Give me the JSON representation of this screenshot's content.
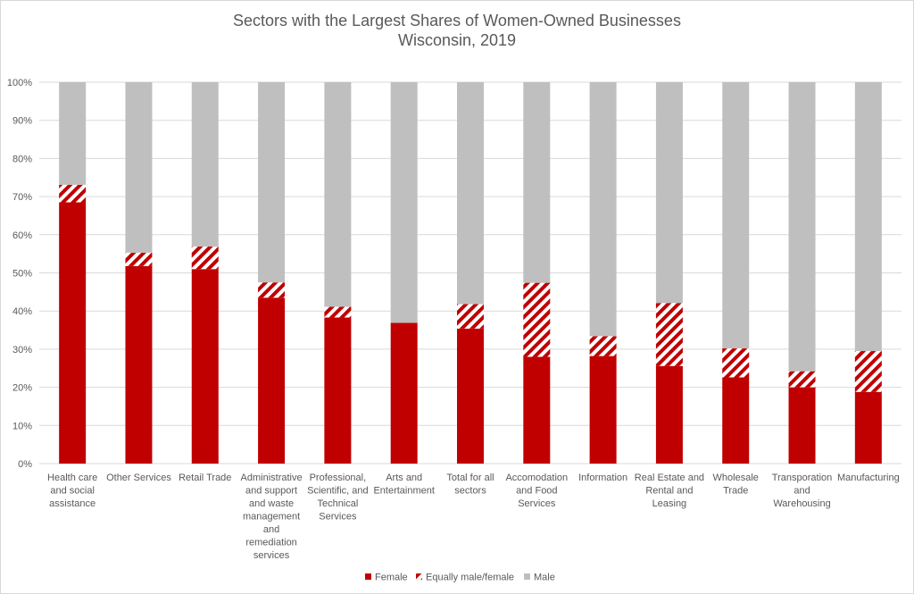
{
  "chart_data": {
    "type": "bar",
    "stacked": "percent",
    "title": "Sectors with the Largest Shares of Women-Owned Businesses",
    "subtitle": "Wisconsin, 2019",
    "xlabel": "",
    "ylabel": "",
    "ylim": [
      0,
      100
    ],
    "y_ticks": [
      "0%",
      "10%",
      "20%",
      "30%",
      "40%",
      "50%",
      "60%",
      "70%",
      "80%",
      "90%",
      "100%"
    ],
    "grid": true,
    "legend_position": "bottom",
    "categories": [
      "Health care and social assistance",
      "Other Services",
      "Retail Trade",
      "Administrative and support and waste management and remediation services",
      "Professional, Scientific, and Technical Services",
      "Arts and Entertainment",
      "Total for all sectors",
      "Accomodation and Food Services",
      "Information",
      "Real Estate and Rental and Leasing",
      "Wholesale Trade",
      "Transporation and Warehousing",
      "Manufacturing"
    ],
    "category_label_lines": [
      [
        "Health care",
        "and social",
        "assistance"
      ],
      [
        "Other Services"
      ],
      [
        "Retail Trade"
      ],
      [
        "Administrative",
        "and support",
        "and waste",
        "management",
        "and",
        "remediation",
        "services"
      ],
      [
        "Professional,",
        "Scientific, and",
        "Technical",
        "Services"
      ],
      [
        "Arts and",
        "Entertainment"
      ],
      [
        "Total for all",
        "sectors"
      ],
      [
        "Accomodation",
        "and Food",
        "Services"
      ],
      [
        "Information"
      ],
      [
        "Real Estate and",
        "Rental and",
        "Leasing"
      ],
      [
        "Wholesale",
        "Trade"
      ],
      [
        "Transporation",
        "and",
        "Warehousing"
      ],
      [
        "Manufacturing"
      ]
    ],
    "series": [
      {
        "name": "Female",
        "color": "#c00000",
        "pattern": "solid",
        "values": [
          68.5,
          51.8,
          51.0,
          43.5,
          38.3,
          36.9,
          35.4,
          28.0,
          28.2,
          25.6,
          22.6,
          20.0,
          18.8
        ]
      },
      {
        "name": "Equally male/female",
        "color": "#c00000",
        "pattern": "diagonal-stripes",
        "values": [
          4.6,
          3.5,
          5.9,
          4.0,
          2.8,
          0.0,
          6.4,
          19.4,
          5.2,
          16.5,
          7.6,
          4.2,
          10.7
        ]
      },
      {
        "name": "Male",
        "color": "#bfbfbf",
        "pattern": "solid",
        "values": [
          26.9,
          44.7,
          43.1,
          52.5,
          58.9,
          63.1,
          58.2,
          52.6,
          66.6,
          57.9,
          69.8,
          75.8,
          70.5
        ]
      }
    ]
  }
}
